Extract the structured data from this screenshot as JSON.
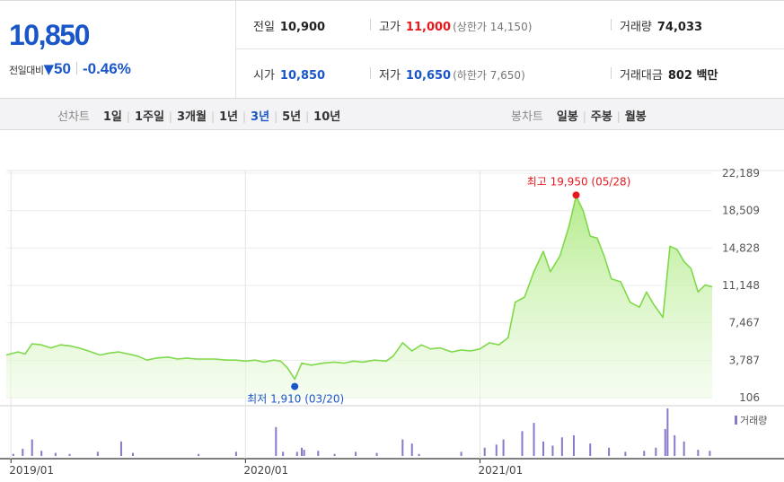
{
  "quote": {
    "price": "10,850",
    "change_label": "전일대비",
    "change_arrow": "▼",
    "change_amount": "50",
    "change_rate": "-0.46%",
    "prev_close_label": "전일",
    "prev_close": "10,900",
    "high_label": "고가",
    "high": "11,000",
    "upper_limit": "(상한가 14,150)",
    "volume_label": "거래량",
    "volume": "74,033",
    "open_label": "시가",
    "open": "10,850",
    "low_label": "저가",
    "low": "10,650",
    "lower_limit": "(하한가 7,650)",
    "trade_value_label": "거래대금",
    "trade_value": "802 백만",
    "colors": {
      "up": "#e8191d",
      "down": "#1a56c7"
    }
  },
  "line_tabs": {
    "caption": "선차트",
    "items": [
      "1일",
      "1주일",
      "3개월",
      "1년",
      "3년",
      "5년",
      "10년"
    ],
    "active": "3년"
  },
  "candle_tabs": {
    "caption": "봉차트",
    "items": [
      "일봉",
      "주봉",
      "월봉"
    ]
  },
  "chart_data": {
    "type": "area",
    "y_ticks": [
      "22,189",
      "18,509",
      "14,828",
      "11,148",
      "7,467",
      "3,787",
      "106"
    ],
    "ylim": [
      106,
      22189
    ],
    "x_tick_labels": [
      "2019/01",
      "2020/01",
      "2021/01"
    ],
    "x_ticks": [
      2019.0,
      2020.0,
      2021.0
    ],
    "xlim": [
      2018.98,
      2021.99
    ],
    "grid": true,
    "high_annotation": {
      "text": "최고 19,950 (05/28)",
      "x": 2021.41,
      "y": 19950,
      "color": "#e8191d"
    },
    "low_annotation": {
      "text": "최저 1,910 (03/20)",
      "x": 2020.21,
      "y": 1910,
      "color": "#1a56c7"
    },
    "series": [
      {
        "type": "area",
        "color": "#7fd94a",
        "points": [
          [
            2018.98,
            4300
          ],
          [
            2019.03,
            4600
          ],
          [
            2019.06,
            4400
          ],
          [
            2019.09,
            5400
          ],
          [
            2019.13,
            5300
          ],
          [
            2019.17,
            5000
          ],
          [
            2019.21,
            5300
          ],
          [
            2019.25,
            5200
          ],
          [
            2019.29,
            5000
          ],
          [
            2019.33,
            4700
          ],
          [
            2019.38,
            4300
          ],
          [
            2019.42,
            4500
          ],
          [
            2019.46,
            4600
          ],
          [
            2019.5,
            4400
          ],
          [
            2019.54,
            4200
          ],
          [
            2019.58,
            3800
          ],
          [
            2019.62,
            4000
          ],
          [
            2019.67,
            4100
          ],
          [
            2019.71,
            3900
          ],
          [
            2019.75,
            4000
          ],
          [
            2019.79,
            3900
          ],
          [
            2019.83,
            3900
          ],
          [
            2019.87,
            3900
          ],
          [
            2019.92,
            3800
          ],
          [
            2019.96,
            3800
          ],
          [
            2020.0,
            3700
          ],
          [
            2020.04,
            3800
          ],
          [
            2020.08,
            3600
          ],
          [
            2020.12,
            3800
          ],
          [
            2020.15,
            3700
          ],
          [
            2020.18,
            3000
          ],
          [
            2020.21,
            1910
          ],
          [
            2020.24,
            3500
          ],
          [
            2020.28,
            3300
          ],
          [
            2020.33,
            3500
          ],
          [
            2020.38,
            3600
          ],
          [
            2020.42,
            3500
          ],
          [
            2020.46,
            3700
          ],
          [
            2020.5,
            3600
          ],
          [
            2020.55,
            3800
          ],
          [
            2020.6,
            3700
          ],
          [
            2020.63,
            4200
          ],
          [
            2020.67,
            5500
          ],
          [
            2020.71,
            4700
          ],
          [
            2020.75,
            5300
          ],
          [
            2020.79,
            4900
          ],
          [
            2020.83,
            5000
          ],
          [
            2020.88,
            4600
          ],
          [
            2020.92,
            4800
          ],
          [
            2020.96,
            4700
          ],
          [
            2021.0,
            4900
          ],
          [
            2021.04,
            5500
          ],
          [
            2021.08,
            5300
          ],
          [
            2021.12,
            6000
          ],
          [
            2021.15,
            9500
          ],
          [
            2021.19,
            10000
          ],
          [
            2021.23,
            12500
          ],
          [
            2021.27,
            14500
          ],
          [
            2021.3,
            12500
          ],
          [
            2021.34,
            14000
          ],
          [
            2021.38,
            17000
          ],
          [
            2021.41,
            19950
          ],
          [
            2021.44,
            18500
          ],
          [
            2021.47,
            16000
          ],
          [
            2021.5,
            15800
          ],
          [
            2021.53,
            14000
          ],
          [
            2021.56,
            11800
          ],
          [
            2021.6,
            11500
          ],
          [
            2021.64,
            9500
          ],
          [
            2021.68,
            9000
          ],
          [
            2021.71,
            10500
          ],
          [
            2021.74,
            9300
          ],
          [
            2021.78,
            8000
          ],
          [
            2021.81,
            15000
          ],
          [
            2021.84,
            14700
          ],
          [
            2021.87,
            13500
          ],
          [
            2021.9,
            12800
          ],
          [
            2021.93,
            10500
          ],
          [
            2021.96,
            11200
          ],
          [
            2021.99,
            11000
          ]
        ]
      },
      {
        "type": "bar",
        "color": "#8a78c8",
        "name": "거래량",
        "points": [
          [
            2019.01,
            0.1
          ],
          [
            2019.05,
            0.35
          ],
          [
            2019.09,
            0.8
          ],
          [
            2019.13,
            0.25
          ],
          [
            2019.19,
            0.15
          ],
          [
            2019.25,
            0.1
          ],
          [
            2019.37,
            0.2
          ],
          [
            2019.47,
            0.7
          ],
          [
            2019.52,
            0.15
          ],
          [
            2019.8,
            0.1
          ],
          [
            2019.96,
            0.2
          ],
          [
            2020.13,
            1.4
          ],
          [
            2020.16,
            0.2
          ],
          [
            2020.22,
            0.2
          ],
          [
            2020.24,
            0.4
          ],
          [
            2020.25,
            0.3
          ],
          [
            2020.31,
            0.25
          ],
          [
            2020.38,
            0.1
          ],
          [
            2020.47,
            0.2
          ],
          [
            2020.56,
            0.15
          ],
          [
            2020.67,
            0.8
          ],
          [
            2020.71,
            0.6
          ],
          [
            2020.74,
            0.1
          ],
          [
            2020.92,
            0.2
          ],
          [
            2021.02,
            0.4
          ],
          [
            2021.07,
            0.55
          ],
          [
            2021.1,
            0.8
          ],
          [
            2021.18,
            1.2
          ],
          [
            2021.23,
            1.6
          ],
          [
            2021.27,
            0.7
          ],
          [
            2021.31,
            0.5
          ],
          [
            2021.35,
            0.9
          ],
          [
            2021.4,
            1.0
          ],
          [
            2021.47,
            0.6
          ],
          [
            2021.55,
            0.4
          ],
          [
            2021.62,
            0.2
          ],
          [
            2021.7,
            0.25
          ],
          [
            2021.75,
            0.4
          ],
          [
            2021.79,
            1.3
          ],
          [
            2021.8,
            2.3
          ],
          [
            2021.83,
            1.0
          ],
          [
            2021.87,
            0.7
          ],
          [
            2021.93,
            0.3
          ],
          [
            2021.98,
            0.25
          ]
        ]
      }
    ]
  }
}
